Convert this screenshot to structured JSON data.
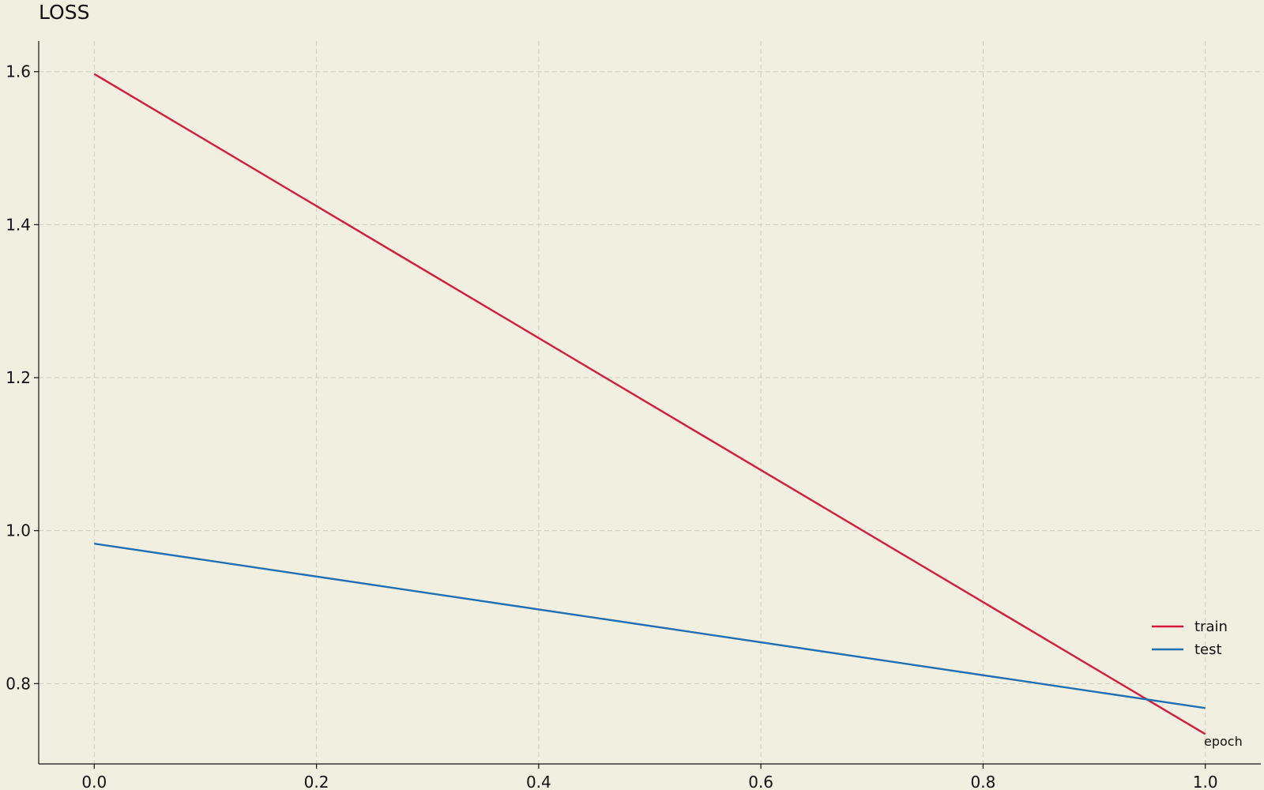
{
  "chart_data": {
    "type": "line",
    "title": "LOSS",
    "xlabel": "epoch",
    "ylabel": "",
    "xlim": [
      -0.05,
      1.05
    ],
    "ylim": [
      0.695,
      1.64
    ],
    "xticks": [
      0.0,
      0.2,
      0.4,
      0.6,
      0.8,
      1.0
    ],
    "xtick_labels": [
      "0.0",
      "0.2",
      "0.4",
      "0.6",
      "0.8",
      "1.0"
    ],
    "yticks": [
      0.8,
      1.0,
      1.2,
      1.4,
      1.6
    ],
    "ytick_labels": [
      "0.8",
      "1.0",
      "1.2",
      "1.4",
      "1.6"
    ],
    "grid": true,
    "legend_position": "bottom-right",
    "x": [
      0.0,
      1.0
    ],
    "series": [
      {
        "name": "train",
        "color": "#d51a3d",
        "values": [
          1.597,
          0.734
        ]
      },
      {
        "name": "test",
        "color": "#1f6fb2",
        "values": [
          0.983,
          0.768
        ]
      }
    ]
  }
}
